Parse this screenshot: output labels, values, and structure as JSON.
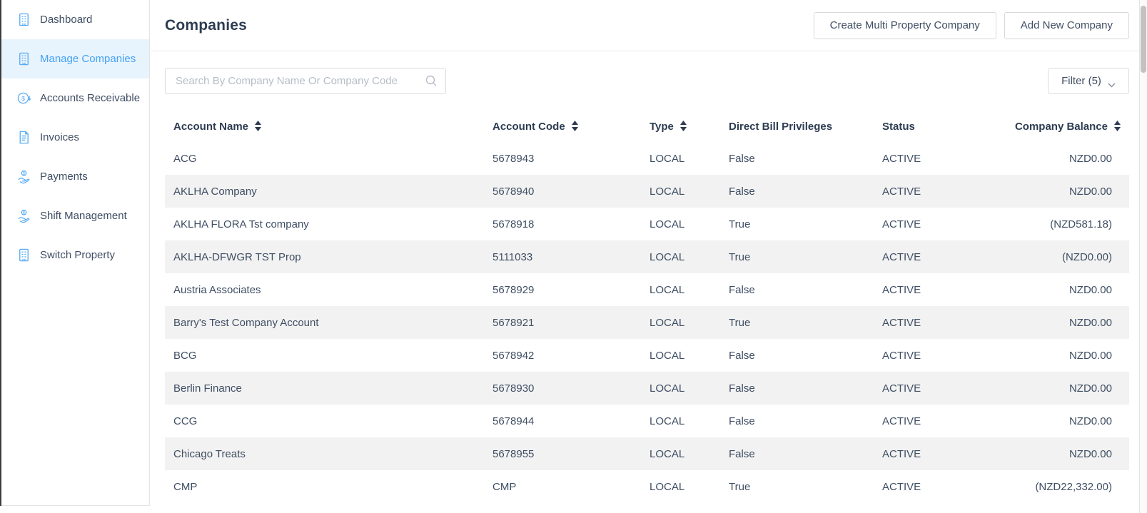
{
  "colors": {
    "accent_blue": "#43a1f5",
    "selected_item_bg": "#e8f4fd",
    "row_stripe": "#f2f2f2",
    "heading_text": "#2d3c52",
    "body_text": "#3f4e63"
  },
  "sidebar": {
    "items": [
      {
        "label": "Dashboard",
        "icon": "building",
        "active": false
      },
      {
        "label": "Manage Companies",
        "icon": "building",
        "active": true
      },
      {
        "label": "Accounts Receivable",
        "icon": "dollar-circle",
        "active": false
      },
      {
        "label": "Invoices",
        "icon": "document",
        "active": false
      },
      {
        "label": "Payments",
        "icon": "hand-coin",
        "active": false
      },
      {
        "label": "Shift Management",
        "icon": "hand-coin",
        "active": false
      },
      {
        "label": "Switch Property",
        "icon": "building",
        "active": false
      }
    ]
  },
  "header": {
    "title": "Companies",
    "create_multi_label": "Create Multi Property Company",
    "add_new_label": "Add New Company"
  },
  "toolbar": {
    "search_placeholder": "Search By Company Name Or Company Code",
    "filter_label": "Filter (5)"
  },
  "table": {
    "columns": [
      {
        "label": "Account Name",
        "sortable": true
      },
      {
        "label": "Account Code",
        "sortable": true
      },
      {
        "label": "Type",
        "sortable": true
      },
      {
        "label": "Direct Bill Privileges",
        "sortable": false
      },
      {
        "label": "Status",
        "sortable": false
      },
      {
        "label": "Company Balance",
        "sortable": true
      }
    ],
    "rows": [
      {
        "name": "ACG",
        "code": "5678943",
        "type": "LOCAL",
        "direct_bill": "False",
        "status": "ACTIVE",
        "balance": "NZD0.00"
      },
      {
        "name": "AKLHA Company",
        "code": "5678940",
        "type": "LOCAL",
        "direct_bill": "False",
        "status": "ACTIVE",
        "balance": "NZD0.00"
      },
      {
        "name": "AKLHA FLORA Tst company",
        "code": "5678918",
        "type": "LOCAL",
        "direct_bill": "True",
        "status": "ACTIVE",
        "balance": "(NZD581.18)"
      },
      {
        "name": "AKLHA-DFWGR TST Prop",
        "code": "5111033",
        "type": "LOCAL",
        "direct_bill": "True",
        "status": "ACTIVE",
        "balance": "(NZD0.00)"
      },
      {
        "name": "Austria Associates",
        "code": "5678929",
        "type": "LOCAL",
        "direct_bill": "False",
        "status": "ACTIVE",
        "balance": "NZD0.00"
      },
      {
        "name": "Barry's Test Company Account",
        "code": "5678921",
        "type": "LOCAL",
        "direct_bill": "True",
        "status": "ACTIVE",
        "balance": "NZD0.00"
      },
      {
        "name": "BCG",
        "code": "5678942",
        "type": "LOCAL",
        "direct_bill": "False",
        "status": "ACTIVE",
        "balance": "NZD0.00"
      },
      {
        "name": "Berlin Finance",
        "code": "5678930",
        "type": "LOCAL",
        "direct_bill": "False",
        "status": "ACTIVE",
        "balance": "NZD0.00"
      },
      {
        "name": "CCG",
        "code": "5678944",
        "type": "LOCAL",
        "direct_bill": "False",
        "status": "ACTIVE",
        "balance": "NZD0.00"
      },
      {
        "name": "Chicago Treats",
        "code": "5678955",
        "type": "LOCAL",
        "direct_bill": "False",
        "status": "ACTIVE",
        "balance": "NZD0.00"
      },
      {
        "name": "CMP",
        "code": "CMP",
        "type": "LOCAL",
        "direct_bill": "True",
        "status": "ACTIVE",
        "balance": "(NZD22,332.00)"
      }
    ]
  }
}
